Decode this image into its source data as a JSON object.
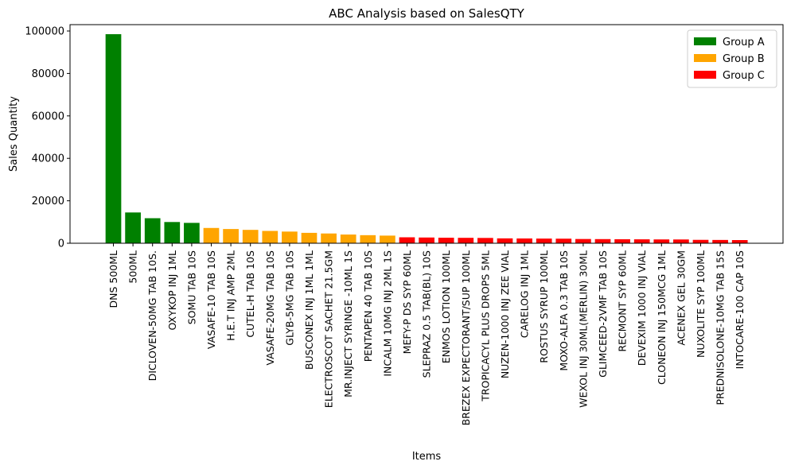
{
  "chart_data": {
    "type": "bar",
    "title": "ABC Analysis based on SalesQTY",
    "xlabel": "Items",
    "ylabel": "Sales Quantity",
    "ylim": [
      0,
      103000
    ],
    "yticks": [
      0,
      20000,
      40000,
      60000,
      80000,
      100000
    ],
    "grid": false,
    "legend_position": "top-right",
    "legend": [
      {
        "label": "Group A",
        "color": "#008000"
      },
      {
        "label": "Group B",
        "color": "#FFA500"
      },
      {
        "label": "Group C",
        "color": "#FF0000"
      }
    ],
    "categories": [
      "DNS 500ML",
      "500ML",
      "DICLOVEN-50MG TAB 10S.",
      "OXYKOP INJ 1ML",
      "SOMU TAB 10S",
      "VASAFE-10 TAB 10S",
      "H.E.T INJ AMP 2ML",
      "CUTEL-H TAB 10S",
      "VASAFE-20MG TAB 10S",
      "GLYB-5MG TAB 10S",
      "BUSCONEX INJ 1ML 1ML",
      "ELECTROSCOT SACHET 21.5GM",
      "MR.INJECT SYRINGE -10ML 1S",
      "PENTAPEN 40 TAB 10S",
      "INCALM 10MG INJ 2ML 1S",
      "MEFY-P DS SYP 60ML",
      "SLEPRAZ 0.5 TAB(BL) 10S",
      "ENMOS LOTION 100ML",
      "BREZEX EXPECTORANT/SUP 100ML",
      "TROPICACYL PLUS DROPS 5ML",
      "NUZEN-1000 INJ ZEE VIAL",
      "CARELOG INJ 1ML",
      "ROSTUS SYRUP 100ML",
      "MOXO-ALFA 0.3 TAB 10S",
      "WEXOL INJ 30ML(MERLIN) 30ML",
      "GLIMCEED-2VMF TAB 10S",
      "RECMONT SYP 60ML",
      "DEVEXIM 1000 INJ VIAL",
      "CLONEON INJ 150MCG 1ML",
      "ACENEX GEL 30GM",
      "NUXOLITE SYP 100ML",
      "PREDNISOLONE-10MG TAB 15S",
      "INTOCARE-100 CAP 10S"
    ],
    "values": [
      98500,
      14500,
      11800,
      10000,
      9600,
      7200,
      6700,
      6300,
      5800,
      5500,
      4900,
      4600,
      4100,
      3800,
      3600,
      2800,
      2700,
      2600,
      2550,
      2500,
      2300,
      2250,
      2200,
      2150,
      2000,
      1950,
      1900,
      1850,
      1800,
      1780,
      1600,
      1550,
      1500
    ],
    "groups": [
      "Group A",
      "Group A",
      "Group A",
      "Group A",
      "Group A",
      "Group B",
      "Group B",
      "Group B",
      "Group B",
      "Group B",
      "Group B",
      "Group B",
      "Group B",
      "Group B",
      "Group B",
      "Group C",
      "Group C",
      "Group C",
      "Group C",
      "Group C",
      "Group C",
      "Group C",
      "Group C",
      "Group C",
      "Group C",
      "Group C",
      "Group C",
      "Group C",
      "Group C",
      "Group C",
      "Group C",
      "Group C",
      "Group C"
    ]
  }
}
